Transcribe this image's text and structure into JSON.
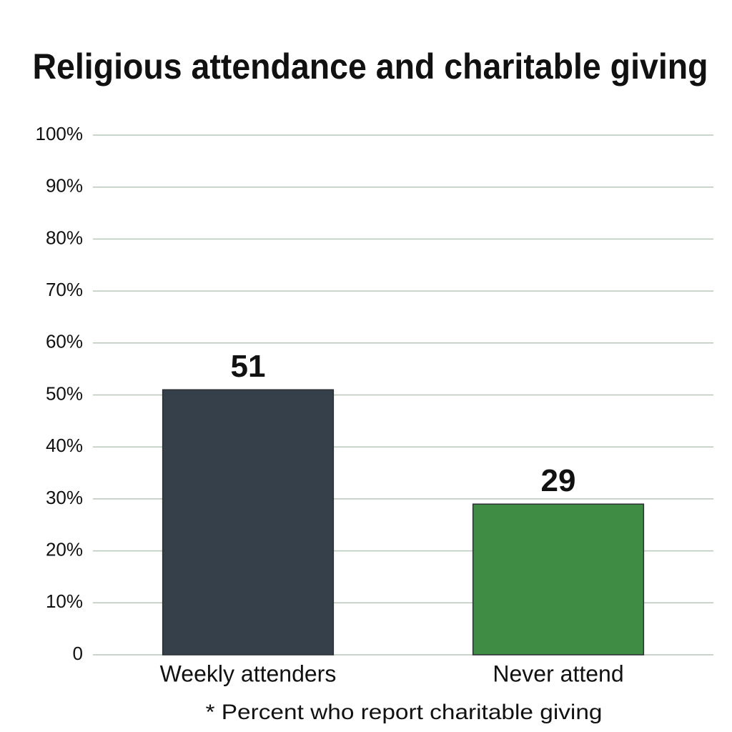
{
  "chart_data": {
    "type": "bar",
    "title": "Religious attendance and charitable giving",
    "categories": [
      "Weekly attenders",
      "Never attend"
    ],
    "values": [
      51,
      29
    ],
    "colors": [
      "#36404a",
      "#3f8c45"
    ],
    "ylim": [
      0,
      100
    ],
    "yticks": [
      0,
      {
        "value": 10,
        "label": "10%"
      },
      {
        "value": 20,
        "label": "20%"
      },
      {
        "value": 30,
        "label": "30%"
      },
      {
        "value": 40,
        "label": "40%"
      },
      {
        "value": 50,
        "label": "50%"
      },
      {
        "value": 60,
        "label": "60%"
      },
      {
        "value": 70,
        "label": "70%"
      },
      {
        "value": 80,
        "label": "80%"
      },
      {
        "value": 90,
        "label": "90%"
      },
      {
        "value": 100,
        "label": "100%"
      }
    ],
    "grid": true,
    "note": "* Percent who report charitable giving"
  }
}
